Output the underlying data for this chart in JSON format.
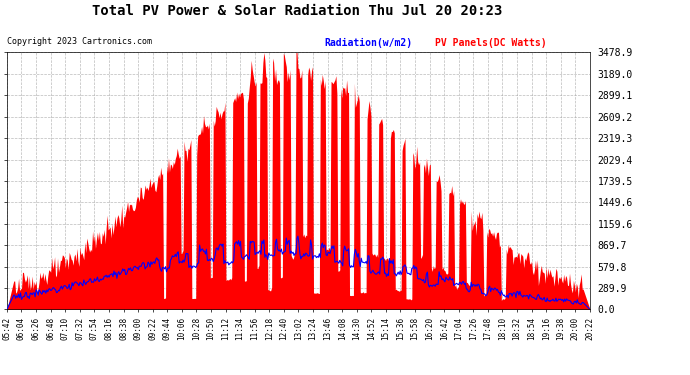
{
  "title": "Total PV Power & Solar Radiation Thu Jul 20 20:23",
  "copyright": "Copyright 2023 Cartronics.com",
  "legend_radiation": "Radiation(w/m2)",
  "legend_pv": "PV Panels(DC Watts)",
  "bg_color": "#ffffff",
  "plot_bg_color": "#ffffff",
  "grid_color": "#aaaaaa",
  "radiation_color": "#0000ff",
  "pv_color": "#ff0000",
  "yticks": [
    0.0,
    289.9,
    579.8,
    869.7,
    1159.6,
    1449.6,
    1739.5,
    2029.4,
    2319.3,
    2609.2,
    2899.1,
    3189.0,
    3478.9
  ],
  "ymax": 3478.9,
  "xtick_labels": [
    "05:42",
    "06:04",
    "06:26",
    "06:48",
    "07:10",
    "07:32",
    "07:54",
    "08:16",
    "08:38",
    "09:00",
    "09:22",
    "09:44",
    "10:06",
    "10:28",
    "10:50",
    "11:12",
    "11:34",
    "11:56",
    "12:18",
    "12:40",
    "13:02",
    "13:24",
    "13:46",
    "14:08",
    "14:30",
    "14:52",
    "15:14",
    "15:36",
    "15:58",
    "16:20",
    "16:42",
    "17:04",
    "17:26",
    "17:48",
    "18:10",
    "18:32",
    "18:54",
    "19:16",
    "19:38",
    "20:00",
    "20:22"
  ],
  "title_color": "#000000",
  "copyright_color": "#000000",
  "tick_color": "#000000",
  "axis_color": "#000000"
}
